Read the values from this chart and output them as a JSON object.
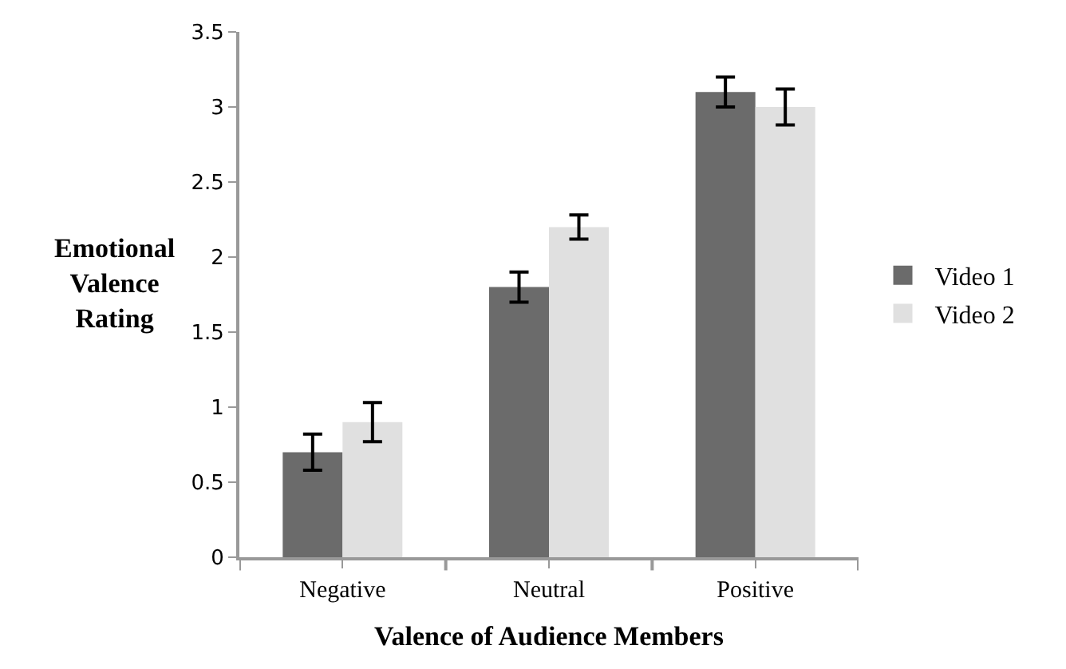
{
  "chart_data": {
    "type": "bar",
    "xlabel": "Valence of Audience Members",
    "ylabel": "Emotional\nValence\nRating",
    "categories": [
      "Negative",
      "Neutral",
      "Positive"
    ],
    "series": [
      {
        "name": "Video 1",
        "color": "#6b6b6b",
        "values": [
          0.7,
          1.8,
          3.1
        ],
        "errors": [
          0.12,
          0.1,
          0.1
        ]
      },
      {
        "name": "Video 2",
        "color": "#e0e0e0",
        "values": [
          0.9,
          2.2,
          3.0
        ],
        "errors": [
          0.13,
          0.08,
          0.12
        ]
      }
    ],
    "ylim": [
      0,
      3.5
    ],
    "yticks": [
      0,
      0.5,
      1,
      1.5,
      2,
      2.5,
      3,
      3.5
    ],
    "legend": "right"
  }
}
